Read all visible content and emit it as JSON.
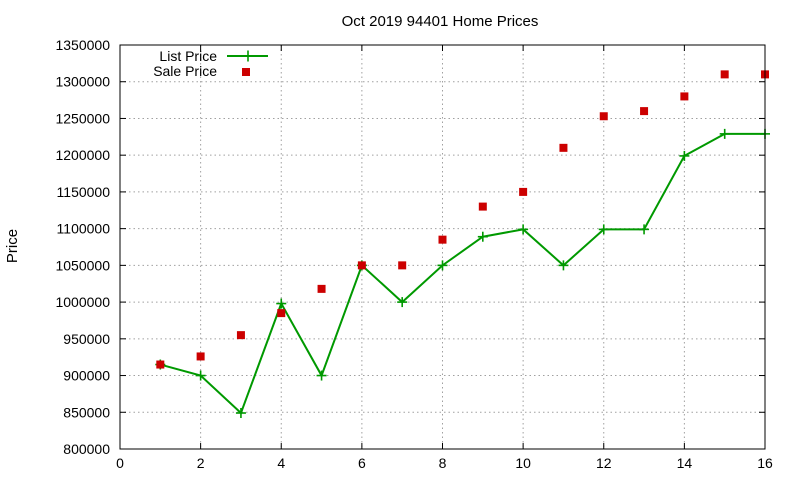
{
  "chart_data": {
    "type": "line",
    "title": "Oct 2019 94401 Home Prices",
    "xlabel": "",
    "ylabel": "Price",
    "xlim": [
      0,
      16
    ],
    "ylim": [
      800000,
      1350000
    ],
    "x_ticks": [
      0,
      2,
      4,
      6,
      8,
      10,
      12,
      14,
      16
    ],
    "y_ticks": [
      800000,
      850000,
      900000,
      950000,
      1000000,
      1050000,
      1100000,
      1150000,
      1200000,
      1250000,
      1300000,
      1350000
    ],
    "x_tick_labels": [
      "0",
      "2",
      "4",
      "6",
      "8",
      "10",
      "12",
      "14",
      "16"
    ],
    "y_tick_labels": [
      "800000",
      "850000",
      "900000",
      "950000",
      "1000000",
      "1050000",
      "1100000",
      "1150000",
      "1200000",
      "1250000",
      "1300000",
      "1350000"
    ],
    "grid": true,
    "legend_position": "top-left",
    "x": [
      1,
      2,
      3,
      4,
      5,
      6,
      7,
      8,
      9,
      10,
      11,
      12,
      13,
      14,
      15,
      16
    ],
    "series": [
      {
        "name": "List Price",
        "style": "line-with-plus-markers",
        "color": "#009900",
        "values": [
          915000,
          900000,
          849000,
          998000,
          900000,
          1050000,
          1000000,
          1050000,
          1089000,
          1099000,
          1050000,
          1099000,
          1099000,
          1199000,
          1229000,
          1229000
        ]
      },
      {
        "name": "Sale Price",
        "style": "square-markers",
        "color": "#cc0000",
        "values": [
          915000,
          926000,
          955000,
          985000,
          1018000,
          1050000,
          1050000,
          1085000,
          1130000,
          1150000,
          1210000,
          1253000,
          1260000,
          1280000,
          1310000,
          1310000
        ]
      }
    ]
  }
}
